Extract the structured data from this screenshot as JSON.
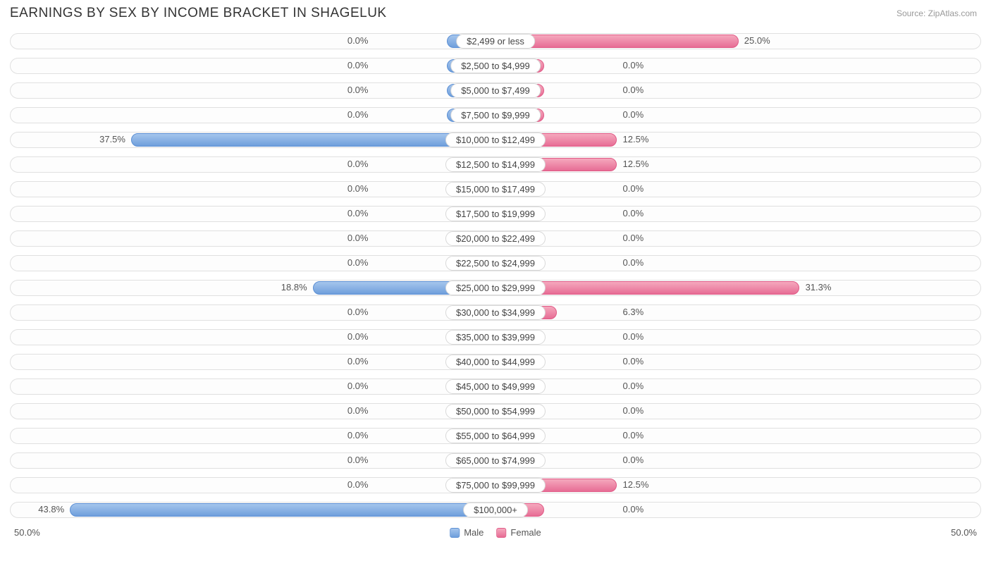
{
  "title": "EARNINGS BY SEX BY INCOME BRACKET IN SHAGELUK",
  "source": "Source: ZipAtlas.com",
  "axis": {
    "max": 50.0,
    "left_label": "50.0%",
    "right_label": "50.0%"
  },
  "legend": {
    "male": "Male",
    "female": "Female"
  },
  "colors": {
    "male_fill_top": "#a5c5ed",
    "male_fill_bot": "#6f9fdc",
    "male_border": "#5b8fd4",
    "female_fill_top": "#f5a8bd",
    "female_fill_bot": "#e76d95",
    "female_border": "#e05a86",
    "track_bg": "#fdfdfd",
    "track_border": "#e0e0e0",
    "label_bg": "#ffffff",
    "label_border": "#d8d8d8",
    "text": "#555555",
    "title_color": "#333333",
    "source_color": "#999999"
  },
  "min_bar_pct": 5.0,
  "label_half_width_pct": 11.0,
  "rows": [
    {
      "category": "$2,499 or less",
      "male": 0.0,
      "female": 25.0,
      "male_label": "0.0%",
      "female_label": "25.0%"
    },
    {
      "category": "$2,500 to $4,999",
      "male": 0.0,
      "female": 0.0,
      "male_label": "0.0%",
      "female_label": "0.0%"
    },
    {
      "category": "$5,000 to $7,499",
      "male": 0.0,
      "female": 0.0,
      "male_label": "0.0%",
      "female_label": "0.0%"
    },
    {
      "category": "$7,500 to $9,999",
      "male": 0.0,
      "female": 0.0,
      "male_label": "0.0%",
      "female_label": "0.0%"
    },
    {
      "category": "$10,000 to $12,499",
      "male": 37.5,
      "female": 12.5,
      "male_label": "37.5%",
      "female_label": "12.5%"
    },
    {
      "category": "$12,500 to $14,999",
      "male": 0.0,
      "female": 12.5,
      "male_label": "0.0%",
      "female_label": "12.5%"
    },
    {
      "category": "$15,000 to $17,499",
      "male": 0.0,
      "female": 0.0,
      "male_label": "0.0%",
      "female_label": "0.0%"
    },
    {
      "category": "$17,500 to $19,999",
      "male": 0.0,
      "female": 0.0,
      "male_label": "0.0%",
      "female_label": "0.0%"
    },
    {
      "category": "$20,000 to $22,499",
      "male": 0.0,
      "female": 0.0,
      "male_label": "0.0%",
      "female_label": "0.0%"
    },
    {
      "category": "$22,500 to $24,999",
      "male": 0.0,
      "female": 0.0,
      "male_label": "0.0%",
      "female_label": "0.0%"
    },
    {
      "category": "$25,000 to $29,999",
      "male": 18.8,
      "female": 31.3,
      "male_label": "18.8%",
      "female_label": "31.3%"
    },
    {
      "category": "$30,000 to $34,999",
      "male": 0.0,
      "female": 6.3,
      "male_label": "0.0%",
      "female_label": "6.3%"
    },
    {
      "category": "$35,000 to $39,999",
      "male": 0.0,
      "female": 0.0,
      "male_label": "0.0%",
      "female_label": "0.0%"
    },
    {
      "category": "$40,000 to $44,999",
      "male": 0.0,
      "female": 0.0,
      "male_label": "0.0%",
      "female_label": "0.0%"
    },
    {
      "category": "$45,000 to $49,999",
      "male": 0.0,
      "female": 0.0,
      "male_label": "0.0%",
      "female_label": "0.0%"
    },
    {
      "category": "$50,000 to $54,999",
      "male": 0.0,
      "female": 0.0,
      "male_label": "0.0%",
      "female_label": "0.0%"
    },
    {
      "category": "$55,000 to $64,999",
      "male": 0.0,
      "female": 0.0,
      "male_label": "0.0%",
      "female_label": "0.0%"
    },
    {
      "category": "$65,000 to $74,999",
      "male": 0.0,
      "female": 0.0,
      "male_label": "0.0%",
      "female_label": "0.0%"
    },
    {
      "category": "$75,000 to $99,999",
      "male": 0.0,
      "female": 12.5,
      "male_label": "0.0%",
      "female_label": "12.5%"
    },
    {
      "category": "$100,000+",
      "male": 43.8,
      "female": 0.0,
      "male_label": "43.8%",
      "female_label": "0.0%"
    }
  ]
}
